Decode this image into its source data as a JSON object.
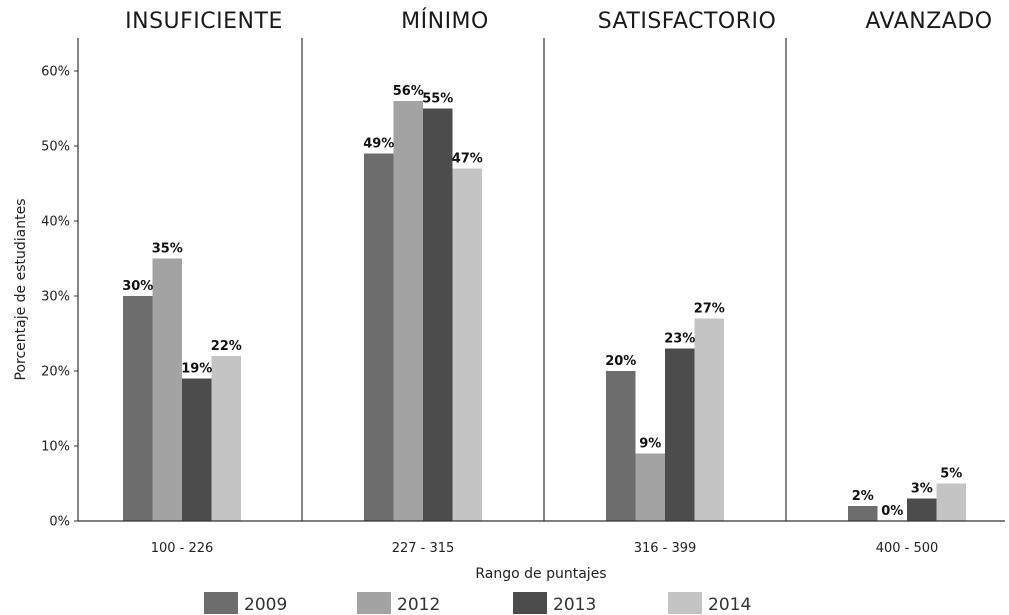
{
  "chart_data": {
    "type": "bar",
    "group_titles": [
      "INSUFICIENTE",
      "MÍNIMO",
      "SATISFACTORIO",
      "AVANZADO"
    ],
    "categories": [
      "100 - 226",
      "227 - 315",
      "316 - 399",
      "400 - 500"
    ],
    "series": [
      {
        "name": "2009",
        "values": [
          30,
          49,
          20,
          2
        ],
        "color": "#6d6d6d"
      },
      {
        "name": "2012",
        "values": [
          35,
          56,
          9,
          0
        ],
        "color": "#a3a3a3"
      },
      {
        "name": "2013",
        "values": [
          19,
          55,
          23,
          3
        ],
        "color": "#4c4c4c"
      },
      {
        "name": "2014",
        "values": [
          22,
          47,
          27,
          5
        ],
        "color": "#c4c4c4"
      }
    ],
    "data_labels": [
      [
        "30%",
        "49%",
        "20%",
        "2%"
      ],
      [
        "35%",
        "56%",
        "9%",
        "0%"
      ],
      [
        "19%",
        "55%",
        "23%",
        "3%"
      ],
      [
        "22%",
        "47%",
        "27%",
        "5%"
      ]
    ],
    "y_ticks": [
      "0%",
      "10%",
      "20%",
      "30%",
      "40%",
      "50%",
      "60%"
    ],
    "ylim": [
      0,
      64
    ],
    "xlabel": "Rango de puntajes",
    "ylabel": "Porcentaje de estudiantes",
    "legend_position": "bottom",
    "grid": false
  }
}
